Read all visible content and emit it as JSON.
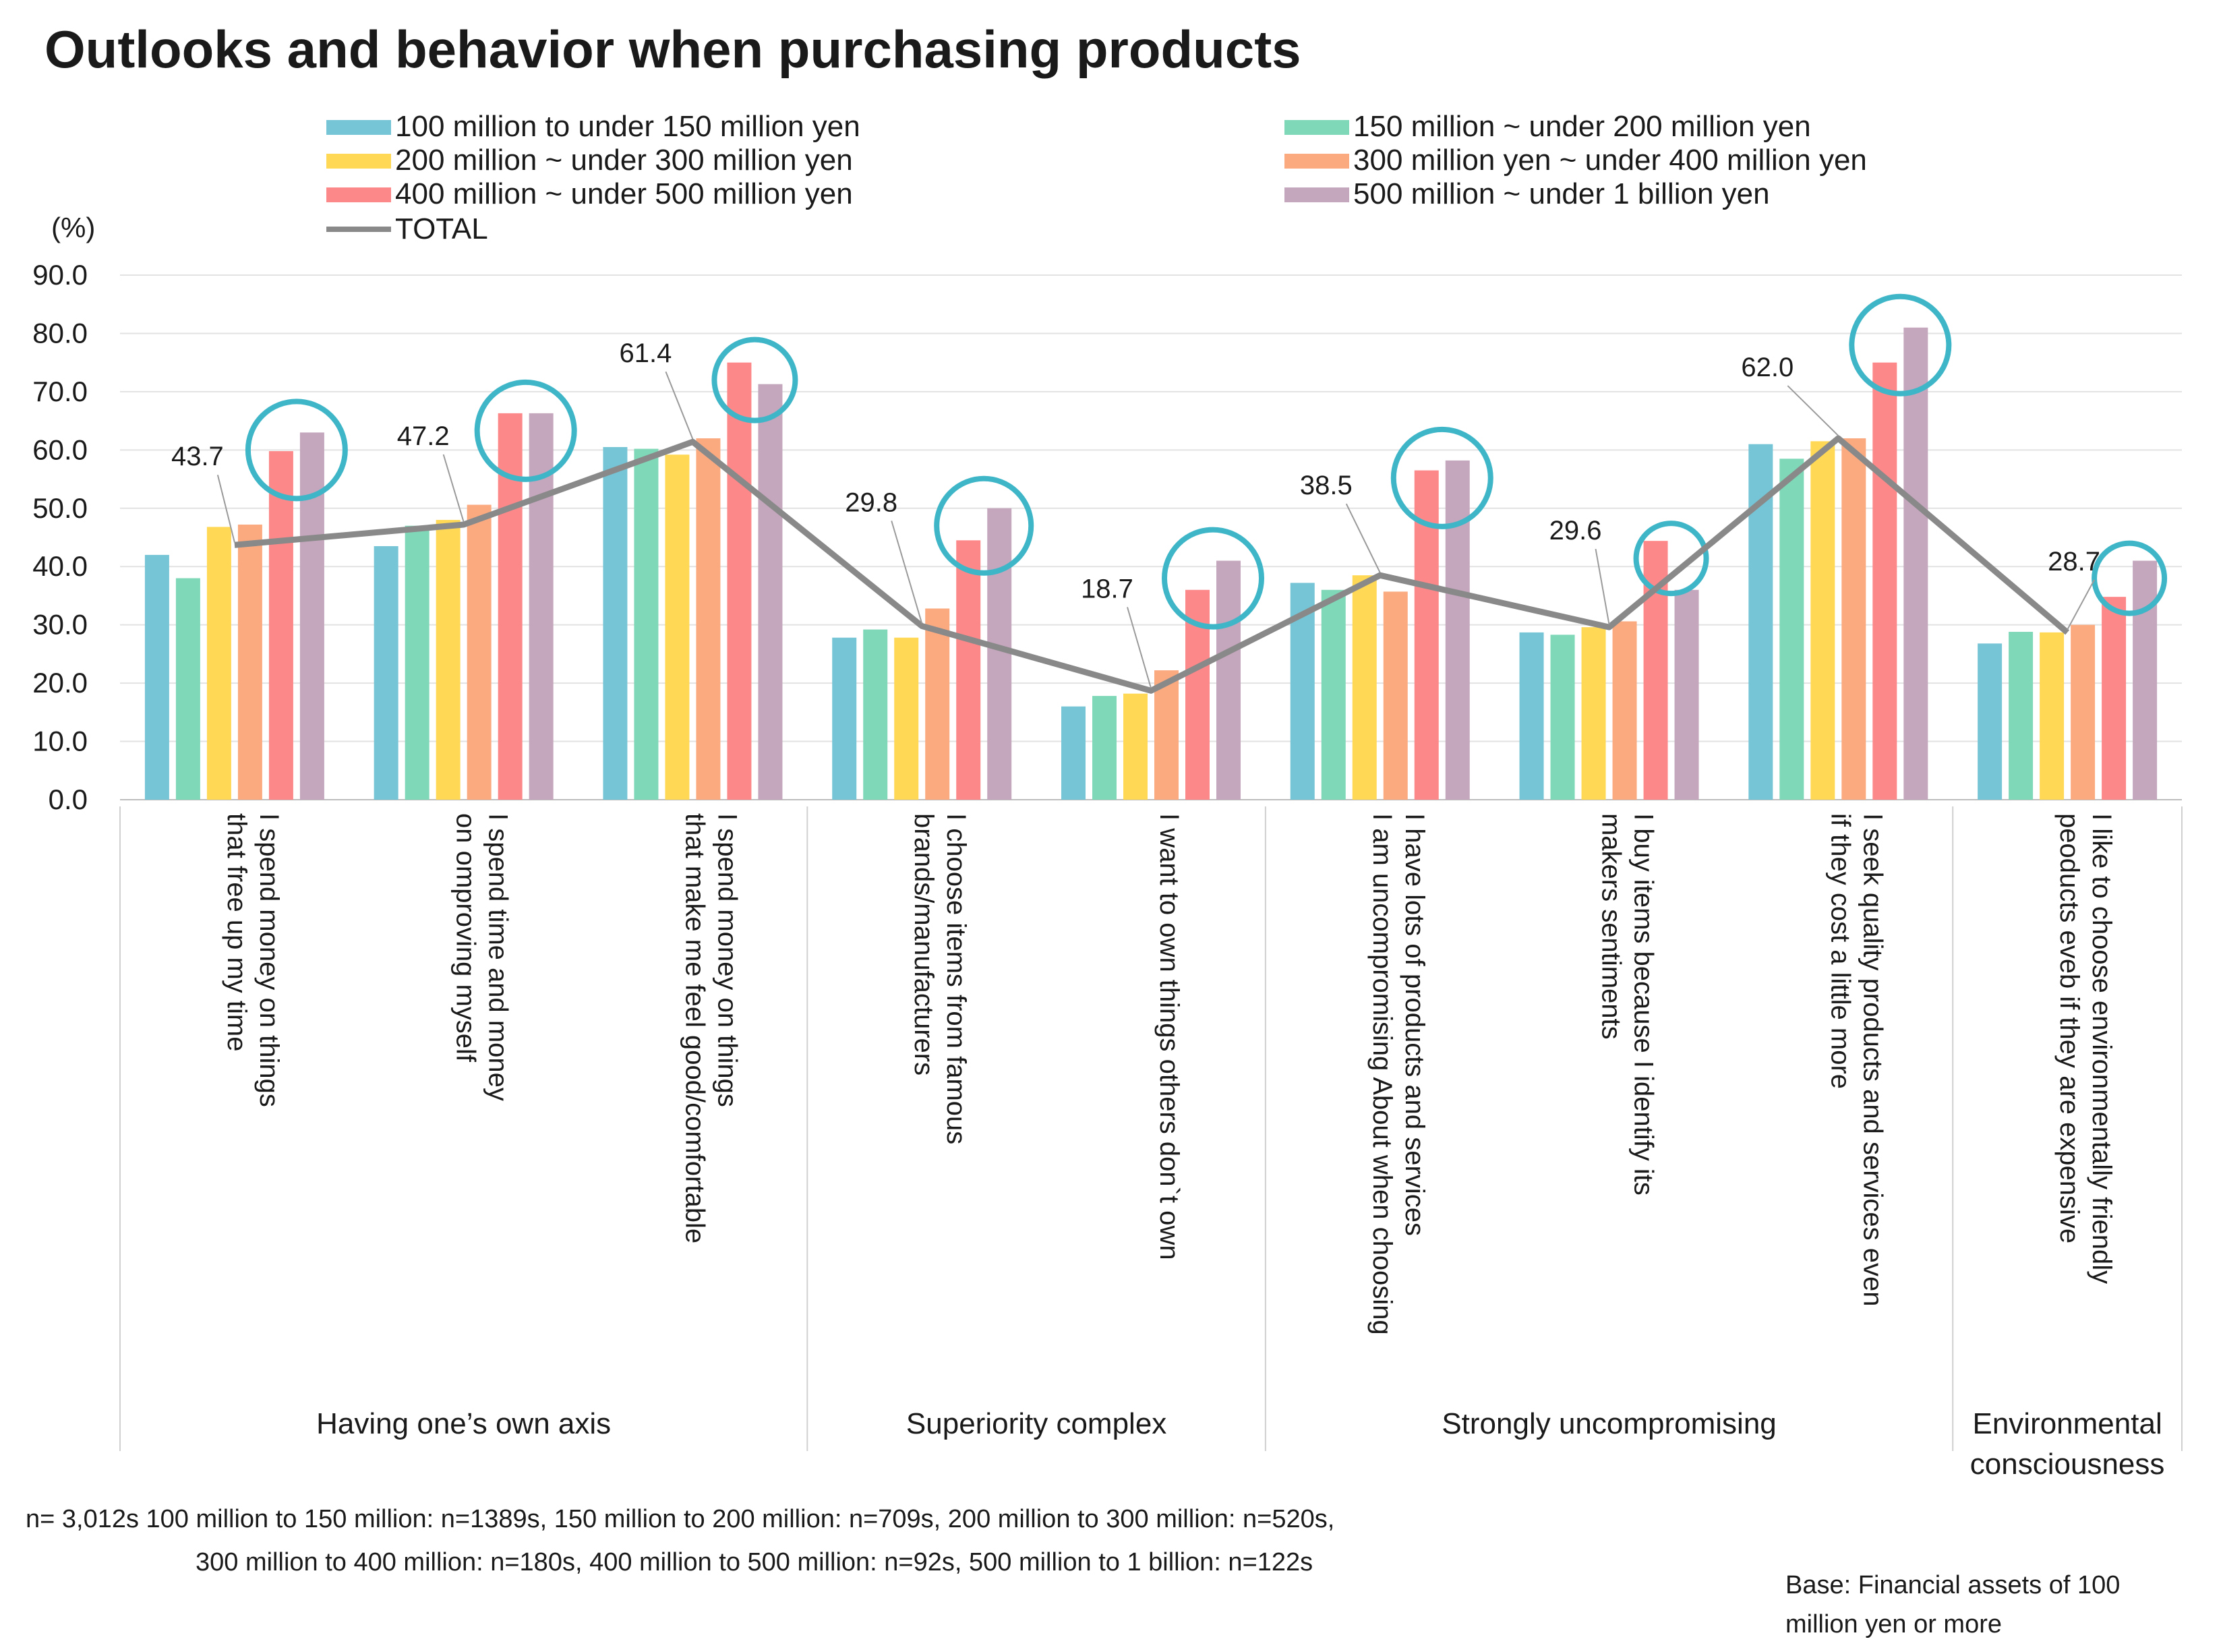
{
  "chart_data": {
    "type": "bar",
    "title": "Outlooks and behavior when purchasing products",
    "ylabel": "(%)",
    "ylim": [
      0,
      90
    ],
    "yticks": [
      "0.0",
      "10.0",
      "20.0",
      "30.0",
      "40.0",
      "50.0",
      "60.0",
      "70.0",
      "80.0",
      "90.0"
    ],
    "categories": [
      [
        "I spend money on things",
        "that free up my time"
      ],
      [
        "I spend time and money",
        "on omproving myself"
      ],
      [
        "I spend money on things",
        "that make me feel good/comfortable"
      ],
      [
        "I choose items from famous",
        "brands/manufacturers"
      ],
      [
        "I want to own things others don`t own"
      ],
      [
        "I have lots of products and services",
        "I am uncompromising About when choosing"
      ],
      [
        "I buy items because I identify its",
        "makers sentiments"
      ],
      [
        "I seek quality products and services even",
        "if they cost a little more"
      ],
      [
        "I like to choose environmentally friendly",
        "peoducts eveb if they are expensive"
      ]
    ],
    "groups": [
      {
        "label": [
          "Having one’s own axis"
        ],
        "start": 0,
        "end": 2
      },
      {
        "label": [
          "Superiority complex"
        ],
        "start": 3,
        "end": 4
      },
      {
        "label": [
          "Strongly uncompromising"
        ],
        "start": 5,
        "end": 7
      },
      {
        "label": [
          "Environmental",
          "consciousness"
        ],
        "start": 8,
        "end": 8
      }
    ],
    "series": [
      {
        "name": "100 million to under 150 million yen",
        "color": "#76c5d6",
        "values": [
          42.0,
          43.5,
          60.5,
          27.8,
          16.0,
          37.2,
          28.7,
          61.0,
          26.8
        ]
      },
      {
        "name": "150 million ~ under 200 million yen",
        "color": "#7fd8b8",
        "values": [
          38.0,
          47.0,
          60.2,
          29.2,
          17.8,
          36.0,
          28.3,
          58.5,
          28.8
        ]
      },
      {
        "name": "200 million ~ under 300 million yen",
        "color": "#ffd856",
        "values": [
          46.8,
          48.0,
          59.2,
          27.8,
          18.2,
          38.5,
          29.6,
          61.5,
          28.7
        ]
      },
      {
        "name": "300 million yen ~ under 400 million yen",
        "color": "#fbaa80",
        "values": [
          47.2,
          50.6,
          62.0,
          32.8,
          22.2,
          35.7,
          30.6,
          62.0,
          30.0
        ]
      },
      {
        "name": "400 million ~ under 500 million yen",
        "color": "#fd8889",
        "values": [
          59.8,
          66.3,
          75.0,
          44.5,
          36.0,
          56.5,
          44.4,
          75.0,
          34.8
        ]
      },
      {
        "name": "500 million ~ under 1 billion yen",
        "color": "#c4a6bd",
        "values": [
          63.0,
          66.3,
          71.3,
          50.0,
          41.0,
          58.2,
          36.0,
          81.0,
          41.0
        ]
      }
    ],
    "total": {
      "name": "TOTAL",
      "color": "#898989",
      "values": [
        43.7,
        47.2,
        61.4,
        29.8,
        18.7,
        38.5,
        29.6,
        62.0,
        28.7
      ],
      "labels": [
        "43.7",
        "47.2",
        "61.4",
        "29.8",
        "18.7",
        "38.5",
        "29.6",
        "62.0",
        "28.7"
      ]
    },
    "highlight_color": "#3fb6c8",
    "grid": true,
    "legend_position": "top"
  },
  "footnotes": {
    "n_line1": "n= 3,012s    100 million to 150 million: n=1389s, 150 million to 200 million: n=709s, 200 million to 300 million: n=520s,",
    "n_line2": "300 million to 400 million: n=180s, 400 million to 500 million: n=92s, 500 million to 1 billion: n=122s",
    "base_line1": "Base: Financial assets of 100",
    "base_line2": "million yen or more"
  }
}
